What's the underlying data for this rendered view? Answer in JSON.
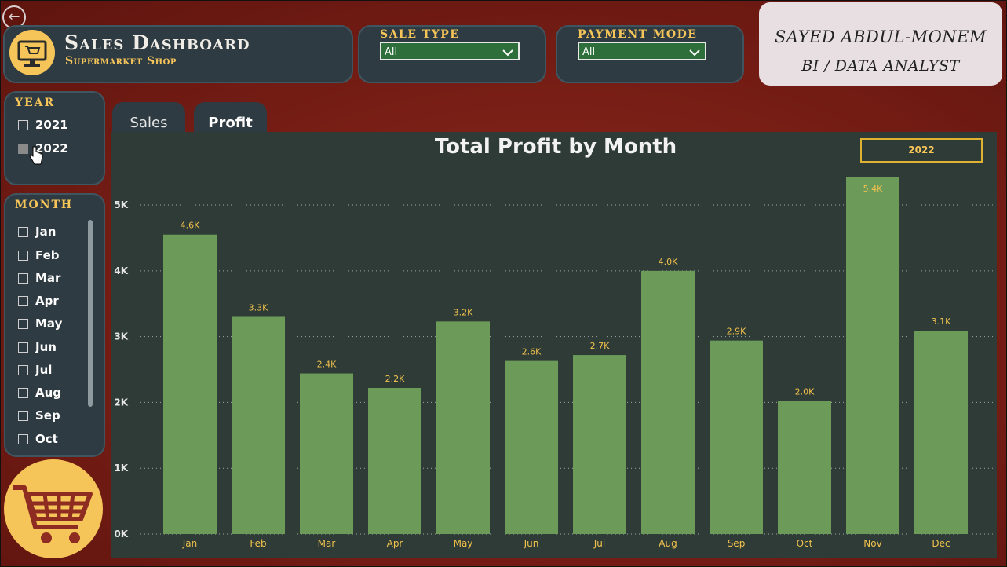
{
  "back_label": "←",
  "header": {
    "title": "Sales Dashboard",
    "subtitle": "Supermarket Shop",
    "logo_icon": "monitor-cart-icon"
  },
  "filters": {
    "sale_type": {
      "label": "SALE TYPE",
      "value": "All"
    },
    "payment_mode": {
      "label": "PAYMENT MODE",
      "value": "All"
    }
  },
  "author": {
    "name": "SAYED ABDUL-MONEM",
    "role": "BI / DATA ANALYST"
  },
  "year_slicer": {
    "label": "YEAR",
    "options": [
      "2021",
      "2022"
    ],
    "selected": "2022"
  },
  "month_slicer": {
    "label": "MONTH",
    "options": [
      "Jan",
      "Feb",
      "Mar",
      "Apr",
      "May",
      "Jun",
      "Jul",
      "Aug",
      "Sep",
      "Oct"
    ]
  },
  "tabs": [
    {
      "label": "Sales"
    },
    {
      "label": "Profit"
    }
  ],
  "active_tab": "Profit",
  "year_badge": "2022",
  "colors": {
    "bar": "#6c9a59",
    "accent": "#f6c55a",
    "panel": "#2f3b42",
    "background": "#7a1f16"
  },
  "chart_data": {
    "type": "bar",
    "title": "Total Profit by Month",
    "categories": [
      "Jan",
      "Feb",
      "Mar",
      "Apr",
      "May",
      "Jun",
      "Jul",
      "Aug",
      "Sep",
      "Oct",
      "Nov",
      "Dec"
    ],
    "values": [
      4550,
      3300,
      2440,
      2220,
      3230,
      2630,
      2720,
      4000,
      2940,
      2020,
      5430,
      3090
    ],
    "data_labels": [
      "4.6K",
      "3.3K",
      "2.4K",
      "2.2K",
      "3.2K",
      "2.6K",
      "2.7K",
      "4.0K",
      "2.9K",
      "2.0K",
      "5.4K",
      "3.1K"
    ],
    "yticks": [
      "0K",
      "1K",
      "2K",
      "3K",
      "4K",
      "5K"
    ],
    "ylim": [
      0,
      5800
    ],
    "grid": true,
    "xlabel": "",
    "ylabel": ""
  }
}
